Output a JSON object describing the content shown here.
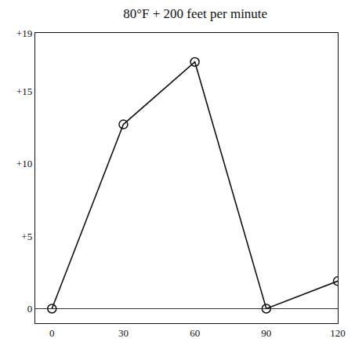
{
  "chart_data": {
    "type": "line",
    "title": "80°F + 200 feet per minute",
    "x": [
      0,
      30,
      60,
      90,
      120
    ],
    "values": [
      0,
      12.7,
      17,
      0,
      1.9
    ],
    "color": "#111111",
    "marker": "open_circle",
    "line_style": "solid",
    "xlim": [
      -7,
      120
    ],
    "xticks": [
      0,
      30,
      60,
      90,
      120
    ],
    "ylim": [
      -1,
      19
    ],
    "yticks": [
      0,
      {
        "value": 5,
        "label": "+5"
      },
      {
        "value": 10,
        "label": "+10"
      },
      {
        "value": 15,
        "label": "+15"
      },
      {
        "value": 19,
        "label": "+19"
      }
    ],
    "grid": false
  }
}
